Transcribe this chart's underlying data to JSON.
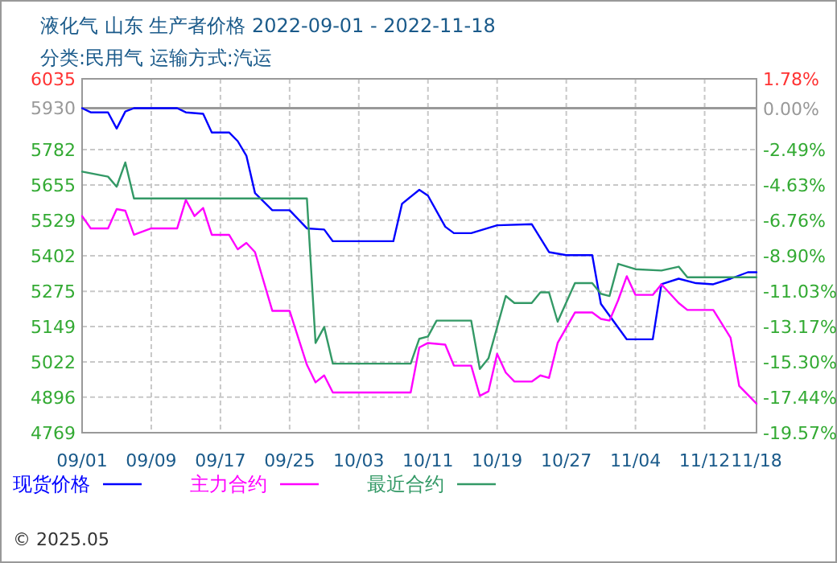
{
  "chart_data": {
    "type": "line",
    "title": "液化气 山东 生产者价格 2022-09-01 - 2022-11-18",
    "subtitle": "分类:民用气 运输方式:汽运",
    "annotations": [
      "© 2025.05"
    ],
    "xlim": [
      "2022-09-01",
      "2022-11-18"
    ],
    "xticks": [
      {
        "value": "2022-09-01",
        "label": "09/01"
      },
      {
        "value": "2022-09-09",
        "label": "09/09"
      },
      {
        "value": "2022-09-17",
        "label": "09/17"
      },
      {
        "value": "2022-09-25",
        "label": "09/25"
      },
      {
        "value": "2022-10-03",
        "label": "10/03"
      },
      {
        "value": "2022-10-11",
        "label": "10/11"
      },
      {
        "value": "2022-10-19",
        "label": "10/19"
      },
      {
        "value": "2022-10-27",
        "label": "10/27"
      },
      {
        "value": "2022-11-04",
        "label": "11/04"
      },
      {
        "value": "2022-11-12",
        "label": "11/12"
      },
      {
        "value": "2022-11-18",
        "label": "11/18"
      }
    ],
    "ylim": [
      4769,
      6035
    ],
    "yticks": [
      4769,
      4896,
      5022,
      5149,
      5275,
      5402,
      5529,
      5655,
      5782,
      5930,
      6035
    ],
    "y2lim": [
      -19.57,
      1.78
    ],
    "y2ticks": [
      {
        "value": -19.57,
        "label": "-19.57%"
      },
      {
        "value": -17.44,
        "label": "-17.44%"
      },
      {
        "value": -15.3,
        "label": "-15.30%"
      },
      {
        "value": -13.17,
        "label": "-13.17%"
      },
      {
        "value": -11.03,
        "label": "-11.03%"
      },
      {
        "value": -8.9,
        "label": "-8.90%"
      },
      {
        "value": -6.76,
        "label": "-6.76%"
      },
      {
        "value": -4.63,
        "label": "-4.63%"
      },
      {
        "value": -2.49,
        "label": "-2.49%"
      },
      {
        "value": 0,
        "label": "0.00%"
      },
      {
        "value": 1.78,
        "label": "1.78%"
      }
    ],
    "ref_lines": [
      {
        "axis": "y",
        "value": 5930,
        "color": "#999999"
      }
    ],
    "grid": true,
    "legend": "bottom",
    "marker": "none",
    "line_style": "solid",
    "series": [
      {
        "name": "现货价格",
        "color": "#0000ff",
        "x": [
          "2022-09-01",
          "2022-09-02",
          "2022-09-04",
          "2022-09-05",
          "2022-09-06",
          "2022-09-07",
          "2022-09-12",
          "2022-09-13",
          "2022-09-15",
          "2022-09-16",
          "2022-09-18",
          "2022-09-19",
          "2022-09-20",
          "2022-09-21",
          "2022-09-23",
          "2022-09-25",
          "2022-09-27",
          "2022-09-29",
          "2022-09-30",
          "2022-10-07",
          "2022-10-08",
          "2022-10-10",
          "2022-10-11",
          "2022-10-13",
          "2022-10-14",
          "2022-10-16",
          "2022-10-19",
          "2022-10-23",
          "2022-10-25",
          "2022-10-27",
          "2022-10-30",
          "2022-10-31",
          "2022-11-03",
          "2022-11-06",
          "2022-11-07",
          "2022-11-09",
          "2022-11-11",
          "2022-11-13",
          "2022-11-15",
          "2022-11-17",
          "2022-11-18"
        ],
        "values": [
          5930,
          5915,
          5915,
          5857,
          5918,
          5930,
          5930,
          5915,
          5910,
          5843,
          5843,
          5812,
          5760,
          5626,
          5565,
          5565,
          5500,
          5496,
          5454,
          5454,
          5588,
          5638,
          5617,
          5506,
          5483,
          5483,
          5511,
          5515,
          5415,
          5404,
          5404,
          5230,
          5103,
          5103,
          5300,
          5320,
          5304,
          5300,
          5320,
          5343,
          5343
        ]
      },
      {
        "name": "主力合约",
        "color": "#ff00ff",
        "x": [
          "2022-09-01",
          "2022-09-02",
          "2022-09-04",
          "2022-09-05",
          "2022-09-06",
          "2022-09-07",
          "2022-09-09",
          "2022-09-12",
          "2022-09-13",
          "2022-09-14",
          "2022-09-15",
          "2022-09-16",
          "2022-09-18",
          "2022-09-19",
          "2022-09-20",
          "2022-09-21",
          "2022-09-23",
          "2022-09-25",
          "2022-09-27",
          "2022-09-28",
          "2022-09-29",
          "2022-09-30",
          "2022-10-09",
          "2022-10-10",
          "2022-10-11",
          "2022-10-13",
          "2022-10-14",
          "2022-10-16",
          "2022-10-17",
          "2022-10-18",
          "2022-10-19",
          "2022-10-20",
          "2022-10-21",
          "2022-10-23",
          "2022-10-24",
          "2022-10-25",
          "2022-10-26",
          "2022-10-28",
          "2022-10-30",
          "2022-10-31",
          "2022-11-01",
          "2022-11-02",
          "2022-11-03",
          "2022-11-04",
          "2022-11-06",
          "2022-11-07",
          "2022-11-09",
          "2022-11-10",
          "2022-11-13",
          "2022-11-15",
          "2022-11-16",
          "2022-11-18"
        ],
        "values": [
          5544,
          5500,
          5500,
          5569,
          5563,
          5477,
          5500,
          5500,
          5602,
          5544,
          5573,
          5477,
          5477,
          5425,
          5448,
          5415,
          5205,
          5205,
          5012,
          4949,
          4974,
          4913,
          4913,
          5074,
          5090,
          5084,
          5009,
          5009,
          4901,
          4917,
          5051,
          4984,
          4952,
          4952,
          4974,
          4965,
          5090,
          5199,
          5199,
          5176,
          5170,
          5243,
          5329,
          5262,
          5262,
          5300,
          5233,
          5208,
          5208,
          5109,
          4936,
          4873
        ]
      },
      {
        "name": "最近合约",
        "color": "#339966",
        "x": [
          "2022-09-01",
          "2022-09-04",
          "2022-09-05",
          "2022-09-06",
          "2022-09-07",
          "2022-09-27",
          "2022-09-28",
          "2022-09-29",
          "2022-09-30",
          "2022-10-09",
          "2022-10-10",
          "2022-10-11",
          "2022-10-12",
          "2022-10-16",
          "2022-10-17",
          "2022-10-18",
          "2022-10-20",
          "2022-10-21",
          "2022-10-23",
          "2022-10-24",
          "2022-10-25",
          "2022-10-26",
          "2022-10-28",
          "2022-10-30",
          "2022-10-31",
          "2022-11-01",
          "2022-11-02",
          "2022-11-04",
          "2022-11-07",
          "2022-11-09",
          "2022-11-10",
          "2022-11-18"
        ],
        "values": [
          5703,
          5685,
          5649,
          5736,
          5607,
          5607,
          5090,
          5147,
          5016,
          5016,
          5105,
          5113,
          5170,
          5170,
          4997,
          5035,
          5258,
          5233,
          5233,
          5271,
          5271,
          5166,
          5304,
          5304,
          5266,
          5258,
          5373,
          5354,
          5349,
          5363,
          5325,
          5325
        ]
      }
    ]
  }
}
